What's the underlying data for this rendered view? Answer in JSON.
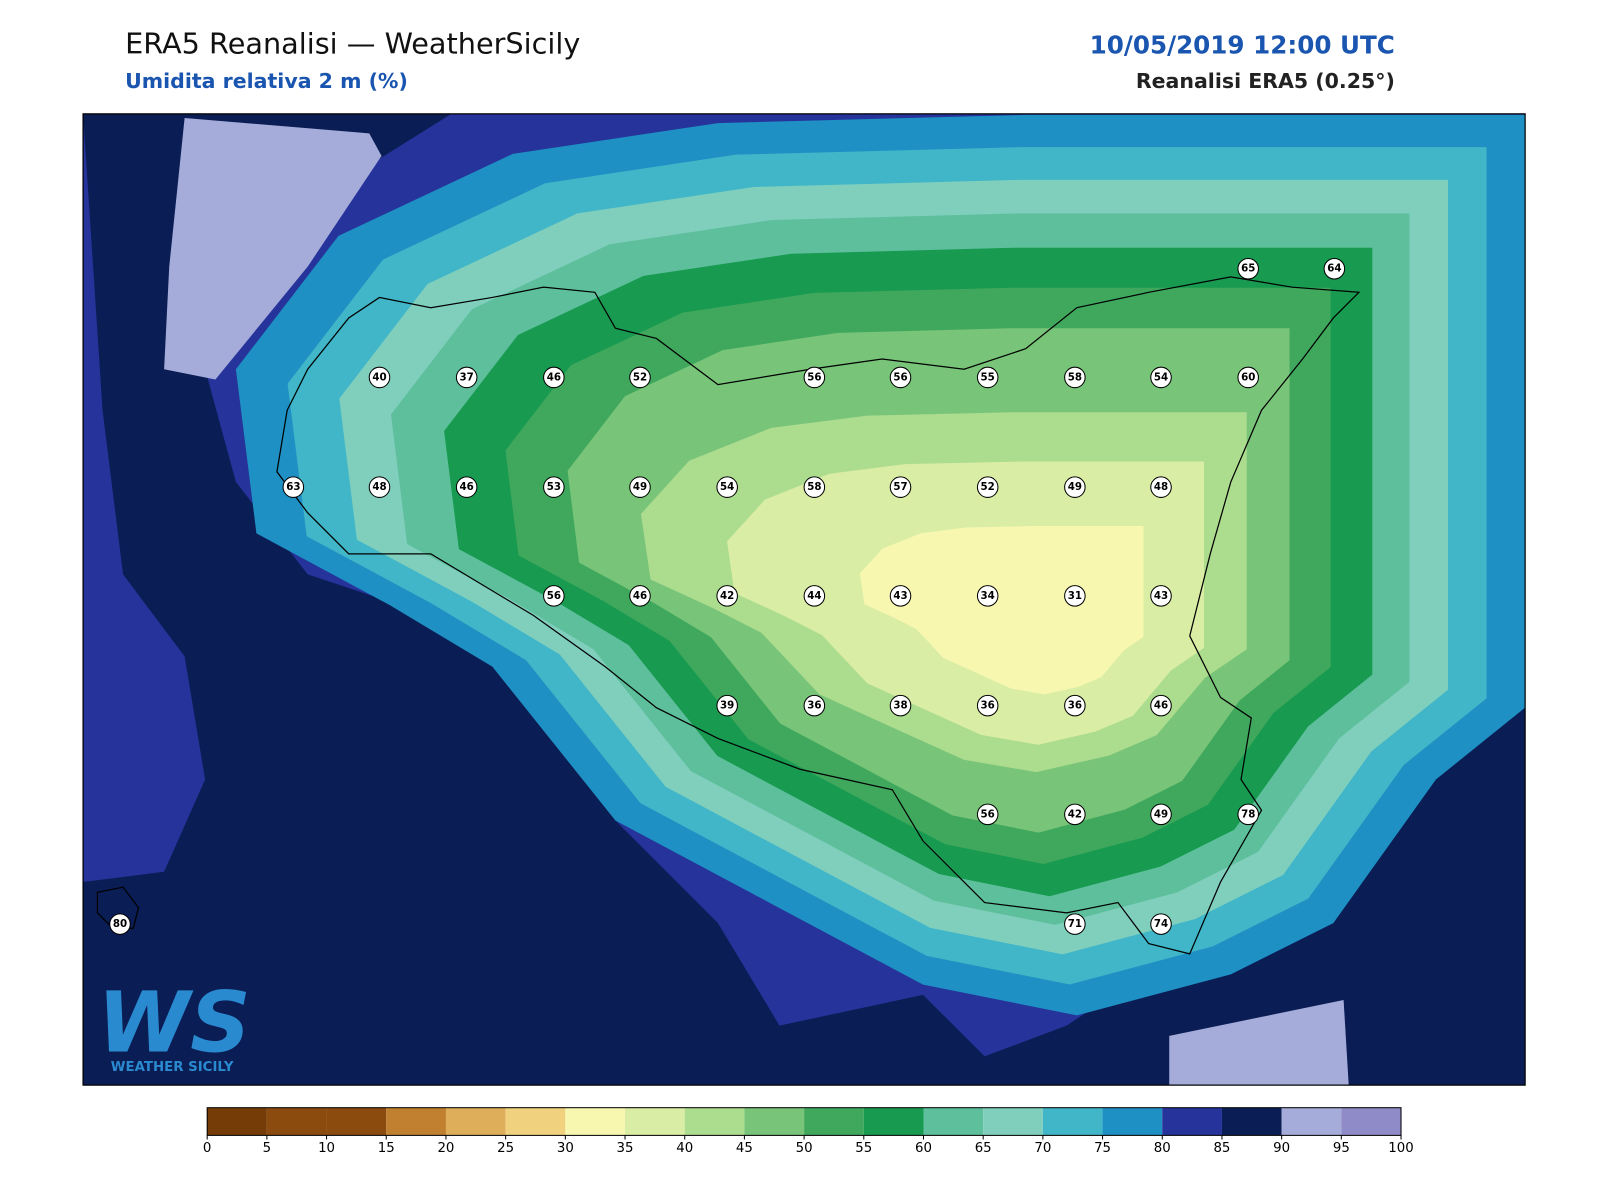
{
  "header": {
    "title": "ERA5 Reanalisi — WeatherSicily",
    "subtitle": "Umidita relativa 2 m (%)",
    "datetime": "10/05/2019 12:00 UTC",
    "source": "Reanalisi ERA5 (0.25°)"
  },
  "logo": {
    "mark": "WS",
    "text": "WEATHER SICILY"
  },
  "stations": [
    65,
    64,
    40,
    37,
    46,
    52,
    56,
    56,
    55,
    58,
    54,
    60,
    63,
    48,
    46,
    53,
    49,
    54,
    58,
    57,
    52,
    49,
    48,
    56,
    46,
    42,
    44,
    43,
    34,
    31,
    43,
    39,
    36,
    38,
    36,
    36,
    46,
    56,
    42,
    49,
    78,
    80,
    71,
    74
  ],
  "colorbar": {
    "ticks": [
      0,
      5,
      10,
      15,
      20,
      25,
      30,
      35,
      40,
      45,
      50,
      55,
      60,
      65,
      70,
      75,
      80,
      85,
      90,
      95,
      100
    ],
    "colors": [
      "#763c07",
      "#8b4a0e",
      "#8b4a0e",
      "#c0802f",
      "#dfae5a",
      "#f0d27e",
      "#f7f7b0",
      "#d9eda4",
      "#acdc8e",
      "#78c479",
      "#3fa85c",
      "#189a50",
      "#5dbf9c",
      "#80cfbd",
      "#40b6c8",
      "#1e90c3",
      "#25339a",
      "#0a1d54",
      "#a5acd9",
      "#8e8bc8"
    ]
  }
}
